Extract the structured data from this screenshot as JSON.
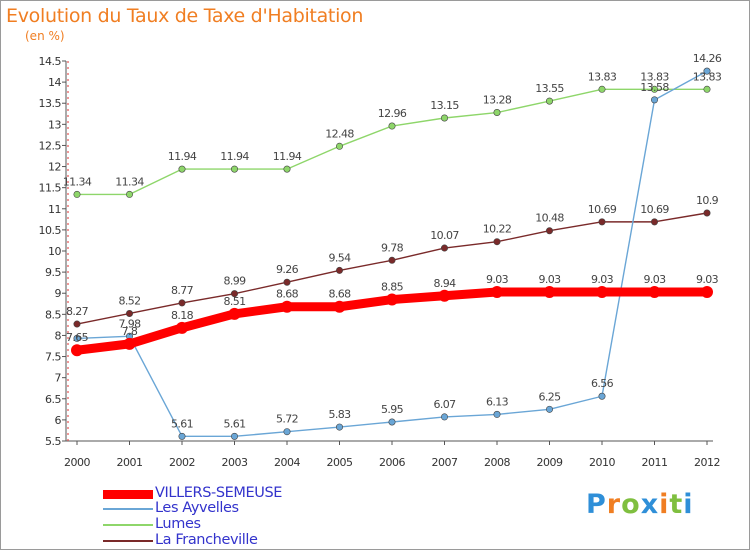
{
  "chart_data": {
    "type": "line",
    "title": "Evolution du Taux de Taxe d'Habitation",
    "subtitle": "(en %)",
    "xlabel": "",
    "ylabel": "",
    "x": [
      "2000",
      "2001",
      "2002",
      "2003",
      "2004",
      "2005",
      "2006",
      "2007",
      "2008",
      "2009",
      "2010",
      "2011",
      "2012"
    ],
    "ylim": [
      5.5,
      14.5
    ],
    "yticks": [
      "5.5",
      "6",
      "6.5",
      "7",
      "7.5",
      "8",
      "8.5",
      "9",
      "9.5",
      "10",
      "10.5",
      "11",
      "11.5",
      "12",
      "12.5",
      "13",
      "13.5",
      "14",
      "14.5"
    ],
    "grid": false,
    "legend_position": "bottom-left",
    "series": [
      {
        "name": "VILLERS-SEMEUSE",
        "color": "#ff0000",
        "values": [
          7.65,
          7.8,
          8.18,
          8.51,
          8.68,
          8.68,
          8.85,
          8.94,
          9.03,
          9.03,
          9.03,
          9.03,
          9.03
        ],
        "labels": [
          "7.65",
          "7.8",
          "8.18",
          "8.51",
          "8.68",
          "8.68",
          "8.85",
          "8.94",
          "9.03",
          "9.03",
          "9.03",
          "9.03",
          "9.03"
        ]
      },
      {
        "name": "Les Ayvelles",
        "color": "#6aa6d6",
        "values": [
          7.93,
          7.98,
          5.61,
          5.61,
          5.72,
          5.83,
          5.95,
          6.07,
          6.13,
          6.25,
          6.56,
          13.58,
          14.26
        ],
        "labels": [
          "",
          "7.98",
          "5.61",
          "5.61",
          "5.72",
          "5.83",
          "5.95",
          "6.07",
          "6.13",
          "6.25",
          "6.56",
          "13.58",
          "14.26"
        ]
      },
      {
        "name": "Lumes",
        "color": "#8ed66a",
        "values": [
          11.34,
          11.34,
          11.94,
          11.94,
          11.94,
          12.48,
          12.96,
          13.15,
          13.28,
          13.55,
          13.83,
          13.83,
          13.83
        ],
        "labels": [
          "11.34",
          "11.34",
          "11.94",
          "11.94",
          "11.94",
          "12.48",
          "12.96",
          "13.15",
          "13.28",
          "13.55",
          "13.83",
          "13.83",
          "13.83"
        ]
      },
      {
        "name": "La Francheville",
        "color": "#7a2a2a",
        "values": [
          8.27,
          8.52,
          8.77,
          8.99,
          9.26,
          9.54,
          9.78,
          10.07,
          10.22,
          10.48,
          10.69,
          10.69,
          10.9
        ],
        "labels": [
          "8.27",
          "8.52",
          "8.77",
          "8.99",
          "9.26",
          "9.54",
          "9.78",
          "10.07",
          "10.22",
          "10.48",
          "10.69",
          "10.69",
          "10.9"
        ]
      }
    ]
  },
  "logo": {
    "text": "Proxiti",
    "letters": [
      "P",
      "r",
      "o",
      "x",
      "i",
      "t",
      "i"
    ],
    "letter_colors": [
      "#2f8fd8",
      "#f07e22",
      "#7fbf3f",
      "#2f8fd8",
      "#f07e22",
      "#7fbf3f",
      "#2f8fd8"
    ]
  }
}
